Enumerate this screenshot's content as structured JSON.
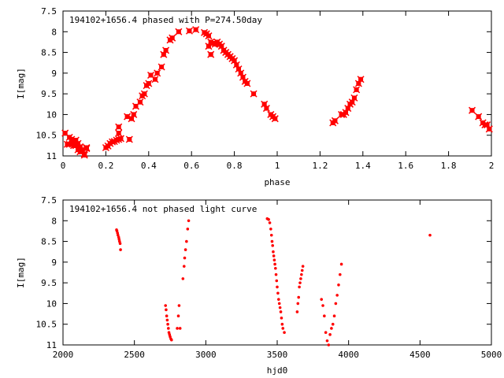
{
  "chart_data": [
    {
      "type": "scatter",
      "title": "194102+1656.4 phased with P=274.50day",
      "xlabel": "phase",
      "ylabel": "I[mag]",
      "xlim": [
        0,
        2
      ],
      "ylim": [
        11,
        7.5
      ],
      "y_inverted": true,
      "xticks": [
        "0",
        "0.2",
        "0.4",
        "0.6",
        "0.8",
        "1",
        "1.2",
        "1.4",
        "1.6",
        "1.8",
        "2"
      ],
      "yticks": [
        "7.5",
        "8",
        "8.5",
        "9",
        "9.5",
        "10",
        "10.5",
        "11"
      ],
      "grid": false,
      "marker_color": "#ff0000",
      "series": [
        {
          "x": [
            0.01,
            0.02,
            0.03,
            0.04,
            0.05,
            0.06,
            0.07,
            0.08,
            0.09,
            0.1,
            0.11,
            0.11,
            0.1,
            0.09,
            0.08,
            0.07,
            0.06,
            0.05,
            0.04,
            0.03,
            0.2,
            0.21,
            0.22,
            0.23,
            0.24,
            0.25,
            0.26,
            0.27,
            0.26,
            0.26,
            0.3,
            0.31,
            0.32,
            0.33,
            0.34,
            0.36,
            0.37,
            0.38,
            0.39,
            0.4,
            0.41,
            0.43,
            0.44,
            0.46,
            0.47,
            0.48,
            0.5,
            0.51,
            0.54,
            0.59,
            0.62,
            0.66,
            0.67,
            0.68,
            0.68,
            0.69,
            0.69,
            0.7,
            0.71,
            0.72,
            0.73,
            0.74,
            0.75,
            0.76,
            0.77,
            0.78,
            0.79,
            0.8,
            0.81,
            0.82,
            0.83,
            0.84,
            0.85,
            0.86,
            0.89,
            0.94,
            0.95,
            0.97,
            0.98,
            0.99,
            1.26,
            1.27,
            1.3,
            1.31,
            1.32,
            1.33,
            1.34,
            1.35,
            1.36,
            1.37,
            1.38,
            1.39,
            1.91,
            1.94,
            1.96,
            1.97,
            1.98,
            1.99
          ],
          "y": [
            10.45,
            10.72,
            10.55,
            10.65,
            10.75,
            10.62,
            10.85,
            10.9,
            10.88,
            10.95,
            10.8,
            10.82,
            10.98,
            10.85,
            10.78,
            10.7,
            10.75,
            10.68,
            10.6,
            10.72,
            10.8,
            10.76,
            10.7,
            10.66,
            10.65,
            10.62,
            10.6,
            10.58,
            10.45,
            10.3,
            10.05,
            10.6,
            10.1,
            10.0,
            9.8,
            9.7,
            9.55,
            9.5,
            9.3,
            9.25,
            9.05,
            9.15,
            9.0,
            8.85,
            8.55,
            8.45,
            8.2,
            8.15,
            8.0,
            7.98,
            7.95,
            8.02,
            8.05,
            8.1,
            8.35,
            8.55,
            8.25,
            8.28,
            8.3,
            8.25,
            8.3,
            8.35,
            8.45,
            8.5,
            8.55,
            8.6,
            8.65,
            8.7,
            8.8,
            8.9,
            9.0,
            9.1,
            9.2,
            9.25,
            9.5,
            9.75,
            9.85,
            10.0,
            10.05,
            10.1,
            10.2,
            10.15,
            10.0,
            10.0,
            9.95,
            9.85,
            9.75,
            9.7,
            9.6,
            9.4,
            9.25,
            9.15,
            9.9,
            10.05,
            10.2,
            10.25,
            10.25,
            10.35
          ]
        }
      ]
    },
    {
      "type": "scatter",
      "title": "194102+1656.4 not phased light curve",
      "xlabel": "hjd0",
      "ylabel": "I[mag]",
      "xlim": [
        2000,
        5000
      ],
      "ylim": [
        11,
        7.5
      ],
      "y_inverted": true,
      "xticks": [
        "2000",
        "2500",
        "3000",
        "3500",
        "4000",
        "4500",
        "5000"
      ],
      "yticks": [
        "7.5",
        "8",
        "8.5",
        "9",
        "9.5",
        "10",
        "10.5",
        "11"
      ],
      "grid": false,
      "marker_color": "#ff0000",
      "series": [
        {
          "x": [
            2375,
            2378,
            2382,
            2385,
            2390,
            2393,
            2396,
            2400,
            2403,
            2718,
            2722,
            2726,
            2730,
            2734,
            2738,
            2742,
            2746,
            2750,
            2755,
            2760,
            2800,
            2808,
            2813,
            2820,
            2840,
            2848,
            2852,
            2858,
            2865,
            2873,
            2880,
            3430,
            3440,
            3448,
            3455,
            3460,
            3464,
            3468,
            3472,
            3476,
            3480,
            3484,
            3488,
            3492,
            3496,
            3500,
            3505,
            3510,
            3515,
            3520,
            3525,
            3530,
            3535,
            3540,
            3550,
            3640,
            3645,
            3650,
            3655,
            3660,
            3665,
            3670,
            3675,
            3680,
            3810,
            3820,
            3830,
            3840,
            3850,
            3860,
            3870,
            3880,
            3890,
            3900,
            3910,
            3920,
            3930,
            3940,
            3950,
            4570
          ],
          "y": [
            8.22,
            8.25,
            8.3,
            8.35,
            8.4,
            8.45,
            8.5,
            8.55,
            8.7,
            10.05,
            10.15,
            10.3,
            10.4,
            10.5,
            10.6,
            10.7,
            10.75,
            10.8,
            10.85,
            10.88,
            10.6,
            10.3,
            10.05,
            10.6,
            9.4,
            9.1,
            8.9,
            8.7,
            8.5,
            8.2,
            8.0,
            7.95,
            7.97,
            8.05,
            8.2,
            8.35,
            8.5,
            8.6,
            8.75,
            8.85,
            8.95,
            9.05,
            9.15,
            9.3,
            9.45,
            9.6,
            9.75,
            9.9,
            10.0,
            10.1,
            10.2,
            10.35,
            10.5,
            10.6,
            10.7,
            10.2,
            10.0,
            9.85,
            9.6,
            9.5,
            9.4,
            9.3,
            9.2,
            9.1,
            9.9,
            10.05,
            10.3,
            10.7,
            10.9,
            11.0,
            10.75,
            10.6,
            10.5,
            10.3,
            10.0,
            9.8,
            9.55,
            9.3,
            9.05,
            8.35
          ]
        }
      ]
    }
  ]
}
